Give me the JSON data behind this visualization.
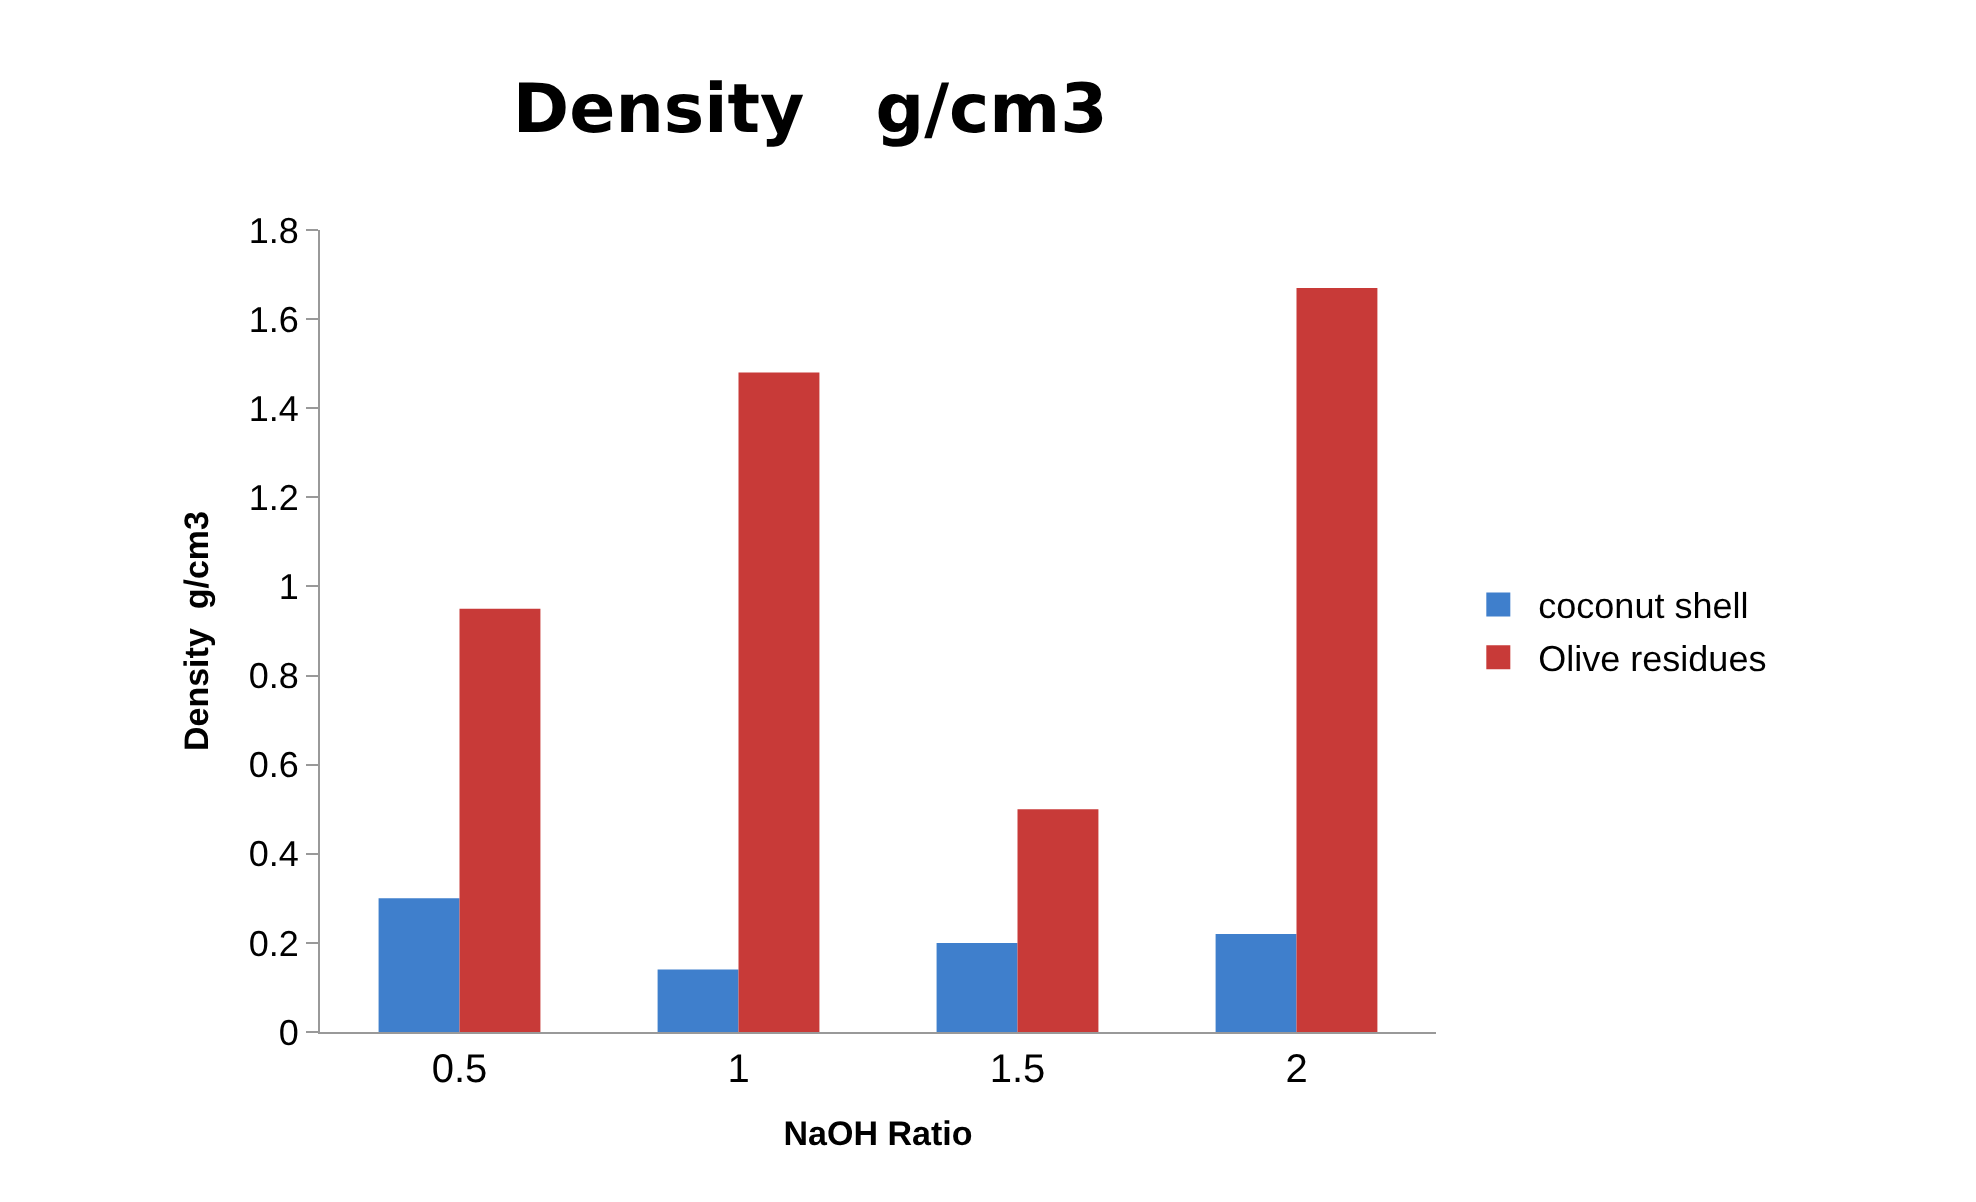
{
  "chart_data": {
    "type": "bar",
    "title": "Density   g/cm3",
    "xlabel": "NaOH Ratio",
    "ylabel": "Density  g/cm3",
    "categories": [
      "0.5",
      "1",
      "1.5",
      "2"
    ],
    "series": [
      {
        "name": "coconut shell",
        "color": "#3f7fcc",
        "values": [
          0.3,
          0.14,
          0.2,
          0.22
        ]
      },
      {
        "name": "Olive residues",
        "color": "#c83a38",
        "values": [
          0.95,
          1.48,
          0.5,
          1.67
        ]
      }
    ],
    "ylim": [
      0,
      1.8
    ],
    "yticks": [
      0,
      0.2,
      0.4,
      0.6,
      0.8,
      1,
      1.2,
      1.4,
      1.6,
      1.8
    ],
    "legend": "right"
  }
}
